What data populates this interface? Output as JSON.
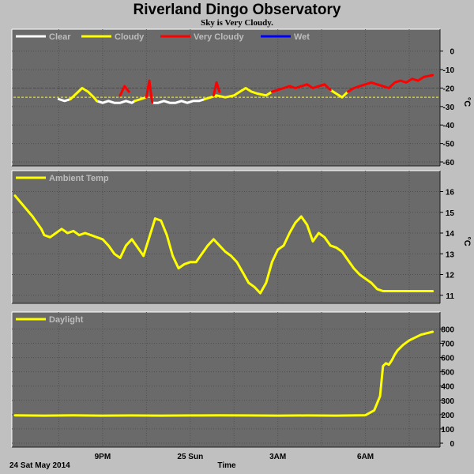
{
  "title": "Riverland Dingo Observatory",
  "subtitle": "Sky is Very Cloudy.",
  "footer": {
    "date": "24 Sat May 2014",
    "xlabel": "Time"
  },
  "x_ticks": [
    "9PM",
    "25 Sun",
    "3AM",
    "6AM"
  ],
  "colors": {
    "clear": "#ffffff",
    "cloudy": "#ffff00",
    "very_cloudy": "#ff0000",
    "wet": "#0000ff",
    "plot_bg": "#6a6a6a",
    "frame_bg": "#c0c0c0"
  },
  "chart_data": [
    {
      "type": "line",
      "name": "sky",
      "ylabel": "°C",
      "ylim": [
        -60,
        5
      ],
      "yticks": [
        0,
        -10,
        -20,
        -30,
        -40,
        -50,
        -60
      ],
      "legend": [
        "Clear",
        "Cloudy",
        "Very Cloudy",
        "Wet"
      ],
      "thresholds": [
        {
          "value": -20,
          "color": "#ff0000"
        },
        {
          "value": -25,
          "color": "#ffff00"
        }
      ],
      "series": [
        {
          "legend_index": 0,
          "color": "#ffffff",
          "segments": [
            {
              "x": [
                19.5,
                19.7,
                19.9
              ],
              "y": [
                -26,
                -27,
                -26
              ]
            },
            {
              "x": [
                20.8,
                21.0,
                21.2,
                21.4,
                21.6,
                21.8,
                22.0,
                22.1
              ],
              "y": [
                -27,
                -28,
                -27,
                -28,
                -28,
                -27,
                -28,
                -27
              ]
            },
            {
              "x": [
                22.7,
                22.9,
                23.1,
                23.3,
                23.5,
                23.7,
                23.9,
                24.1,
                24.3,
                24.5
              ],
              "y": [
                -28,
                -28,
                -27,
                -28,
                -28,
                -27,
                -28,
                -27,
                -27,
                -26
              ]
            }
          ]
        },
        {
          "legend_index": 1,
          "color": "#ffff00",
          "segments": [
            {
              "x": [
                19.9,
                20.1,
                20.3,
                20.5,
                20.7,
                20.8
              ],
              "y": [
                -26,
                -23,
                -20,
                -22,
                -25,
                -27
              ]
            },
            {
              "x": [
                22.1,
                22.3,
                22.5
              ],
              "y": [
                -27,
                -26,
                -25
              ]
            },
            {
              "x": [
                24.5,
                24.7,
                24.9,
                25.2,
                25.5,
                25.7,
                25.9,
                26.1,
                26.3,
                26.6,
                26.8
              ],
              "y": [
                -26,
                -25,
                -24,
                -25,
                -24,
                -22,
                -20,
                -22,
                -23,
                -24,
                -22
              ]
            },
            {
              "x": [
                28.8,
                29.0,
                29.2,
                29.4
              ],
              "y": [
                -21,
                -23,
                -25,
                -22
              ]
            }
          ]
        },
        {
          "legend_index": 2,
          "color": "#ff0000",
          "segments": [
            {
              "x": [
                21.6,
                21.75,
                21.9
              ],
              "y": [
                -24,
                -19,
                -22
              ]
            },
            {
              "x": [
                22.5,
                22.6,
                22.7
              ],
              "y": [
                -25,
                -16,
                -28
              ]
            },
            {
              "x": [
                24.8,
                24.9,
                25.0
              ],
              "y": [
                -24,
                -17,
                -22
              ]
            },
            {
              "x": [
                26.8,
                27.0,
                27.2,
                27.4,
                27.6,
                27.8,
                28.0,
                28.2,
                28.4,
                28.6,
                28.8
              ],
              "y": [
                -22,
                -21,
                -20,
                -19,
                -20,
                -19,
                -18,
                -20,
                -19,
                -18,
                -21
              ]
            },
            {
              "x": [
                29.4,
                29.6,
                29.8,
                30.0,
                30.2,
                30.4,
                30.6,
                30.8,
                31.0,
                31.2,
                31.4,
                31.6,
                31.8,
                32.0,
                32.3
              ],
              "y": [
                -22,
                -20,
                -19,
                -18,
                -17,
                -18,
                -19,
                -20,
                -17,
                -16,
                -17,
                -15,
                -16,
                -14,
                -13
              ]
            }
          ]
        },
        {
          "legend_index": 3,
          "color": "#0000ff",
          "segments": []
        }
      ]
    },
    {
      "type": "line",
      "name": "ambient",
      "ylabel": "°C",
      "ylim": [
        10.8,
        16.4
      ],
      "yticks": [
        16,
        15,
        14,
        13,
        12,
        11
      ],
      "legend": [
        "Ambient Temp"
      ],
      "series": [
        {
          "legend_index": 0,
          "color": "#ffff00",
          "segments": [
            {
              "x": [
                18.0,
                18.3,
                18.6,
                18.9,
                19.0,
                19.2,
                19.4,
                19.6,
                19.8,
                20.0,
                20.2,
                20.4,
                20.6,
                20.8,
                21.0,
                21.2,
                21.4,
                21.6,
                21.8,
                22.0,
                22.2,
                22.4,
                22.6,
                22.8,
                23.0,
                23.2,
                23.4,
                23.6,
                23.8,
                24.0,
                24.2,
                24.4,
                24.6,
                24.8,
                25.0,
                25.2,
                25.4,
                25.6,
                25.8,
                26.0,
                26.2,
                26.4,
                26.6,
                26.8,
                27.0,
                27.2,
                27.4,
                27.6,
                27.8,
                28.0,
                28.2,
                28.4,
                28.6,
                28.8,
                29.0,
                29.2,
                29.4,
                29.6,
                29.8,
                30.0,
                30.2,
                30.4,
                30.6,
                30.8,
                31.0,
                31.2,
                31.4,
                31.6,
                31.8,
                32.0,
                32.3
              ],
              "y": [
                15.8,
                15.3,
                14.8,
                14.2,
                13.9,
                13.8,
                14.0,
                14.2,
                14.0,
                14.1,
                13.9,
                14.0,
                13.9,
                13.8,
                13.7,
                13.4,
                13.0,
                12.8,
                13.4,
                13.7,
                13.3,
                12.9,
                13.8,
                14.7,
                14.6,
                13.9,
                12.9,
                12.3,
                12.5,
                12.6,
                12.6,
                13.0,
                13.4,
                13.7,
                13.4,
                13.1,
                12.9,
                12.6,
                12.1,
                11.6,
                11.4,
                11.1,
                11.6,
                12.6,
                13.2,
                13.4,
                14.0,
                14.5,
                14.8,
                14.4,
                13.6,
                14.0,
                13.8,
                13.4,
                13.3,
                13.1,
                12.7,
                12.3,
                12.0,
                11.8,
                11.6,
                11.3,
                11.2,
                11.2,
                11.2,
                11.2,
                11.2,
                11.2,
                11.2,
                11.2,
                11.2
              ]
            }
          ]
        }
      ]
    },
    {
      "type": "line",
      "name": "daylight",
      "ylabel": "",
      "ylim": [
        0,
        830
      ],
      "yticks": [
        800,
        700,
        600,
        500,
        400,
        300,
        200,
        100,
        0
      ],
      "legend": [
        "Daylight"
      ],
      "series": [
        {
          "legend_index": 0,
          "color": "#ffff00",
          "segments": [
            {
              "x": [
                18.0,
                19.0,
                20.0,
                21.0,
                22.0,
                23.0,
                24.0,
                25.0,
                26.0,
                27.0,
                28.0,
                29.0,
                30.0,
                30.3,
                30.5,
                30.6,
                30.7,
                30.8,
                30.9,
                31.0,
                31.1,
                31.3,
                31.5,
                31.7,
                31.9,
                32.1,
                32.3
              ],
              "y": [
                195,
                193,
                195,
                193,
                194,
                193,
                194,
                195,
                194,
                193,
                194,
                193,
                196,
                230,
                330,
                540,
                560,
                550,
                580,
                620,
                650,
                690,
                720,
                740,
                760,
                770,
                780
              ]
            }
          ]
        }
      ]
    }
  ]
}
